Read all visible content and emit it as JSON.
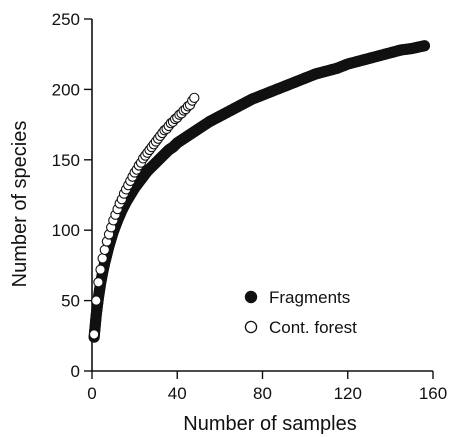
{
  "chart_data": {
    "type": "scatter",
    "xlabel": "Number of samples",
    "ylabel": "Number of species",
    "xlim": [
      0,
      160
    ],
    "ylim": [
      0,
      250
    ],
    "xticks": [
      "0",
      "40",
      "80",
      "120",
      "160"
    ],
    "yticks": [
      "0",
      "50",
      "100",
      "150",
      "200",
      "250"
    ],
    "grid": false,
    "legend_position": "bottom-right",
    "series": [
      {
        "name": "Fragments",
        "marker": "filled-circle",
        "color": "#111111",
        "x": [
          1,
          2,
          3,
          4,
          5,
          6,
          7,
          8,
          9,
          10,
          12,
          14,
          16,
          18,
          20,
          22,
          24,
          26,
          28,
          30,
          32,
          34,
          36,
          38,
          40,
          42,
          44,
          46,
          48,
          50,
          55,
          60,
          65,
          70,
          75,
          80,
          85,
          90,
          95,
          100,
          105,
          110,
          115,
          120,
          125,
          130,
          135,
          140,
          145,
          150,
          156
        ],
        "y": [
          24,
          40,
          52,
          62,
          70,
          77,
          83,
          89,
          94,
          99,
          107,
          114,
          120,
          125,
          130,
          134,
          138,
          142,
          145,
          148,
          151,
          154,
          157,
          159,
          162,
          164,
          166,
          168,
          170,
          172,
          177,
          181,
          185,
          189,
          193,
          196,
          199,
          202,
          205,
          208,
          211,
          213,
          215,
          218,
          220,
          222,
          224,
          226,
          228,
          229,
          231
        ]
      },
      {
        "name": "Cont. forest",
        "marker": "open-circle",
        "color": "#111111",
        "x": [
          1,
          2,
          3,
          4,
          5,
          6,
          7,
          8,
          9,
          10,
          11,
          12,
          13,
          14,
          15,
          16,
          17,
          18,
          19,
          20,
          21,
          22,
          23,
          24,
          25,
          26,
          27,
          28,
          29,
          30,
          31,
          32,
          33,
          34,
          35,
          36,
          37,
          38,
          39,
          40,
          41,
          42,
          43,
          44,
          45,
          46,
          47,
          48
        ],
        "y": [
          26,
          50,
          63,
          72,
          80,
          86,
          92,
          97,
          102,
          107,
          111,
          115,
          119,
          122,
          126,
          129,
          132,
          135,
          138,
          141,
          143,
          146,
          148,
          151,
          153,
          155,
          157,
          159,
          161,
          163,
          165,
          167,
          169,
          171,
          172,
          174,
          176,
          177,
          179,
          180,
          182,
          183,
          185,
          186,
          188,
          189,
          192,
          194
        ]
      }
    ]
  }
}
